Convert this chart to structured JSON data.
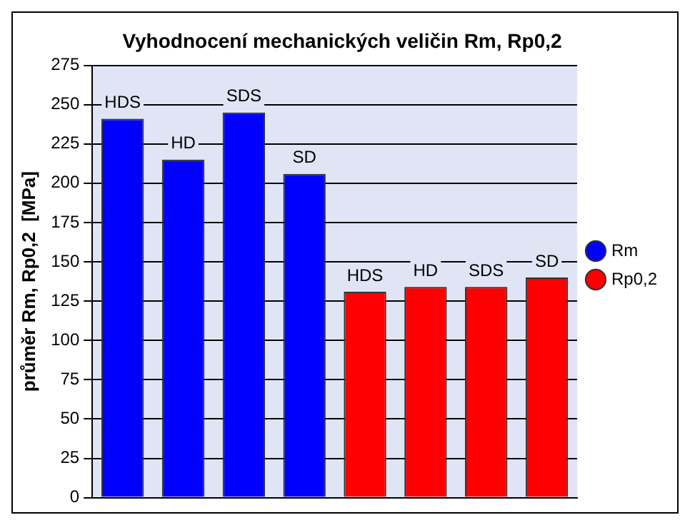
{
  "chart_data": {
    "type": "bar",
    "title": "Vyhodnocení mechanických veličin Rm, Rp0,2",
    "ylabel": "průměr Rm, Rp0,2  [MPa]",
    "categories": [
      null,
      null,
      null,
      null,
      null,
      null,
      null,
      null
    ],
    "series": [
      {
        "name": "Rm",
        "color": "#0000ff",
        "values": [
          241,
          215,
          245,
          206,
          null,
          null,
          null,
          null
        ],
        "value_labels": [
          "HDS",
          "HD",
          "SDS",
          "SD",
          null,
          null,
          null,
          null
        ]
      },
      {
        "name": "Rp0,2",
        "color": "#ff0000",
        "values": [
          null,
          null,
          null,
          null,
          131,
          134,
          134,
          140
        ],
        "value_labels": [
          null,
          null,
          null,
          null,
          "HDS",
          "HD",
          "SDS",
          "SD"
        ]
      }
    ],
    "ylim": [
      0,
      275
    ],
    "yticks": [
      0,
      25,
      50,
      75,
      100,
      125,
      150,
      175,
      200,
      225,
      250,
      275
    ],
    "grid": "y",
    "legend": "right",
    "marker": "circle"
  }
}
